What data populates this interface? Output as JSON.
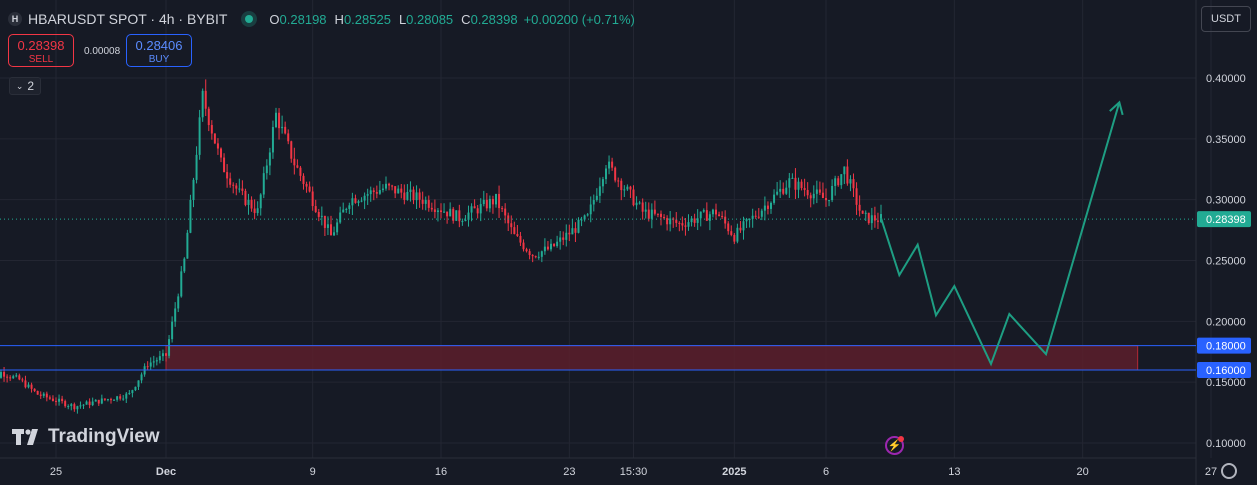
{
  "header": {
    "symbol": "HBARUSDT SPOT · 4h · BYBIT",
    "open_label": "O",
    "open": "0.28198",
    "high_label": "H",
    "high": "0.28525",
    "low_label": "L",
    "low": "0.28085",
    "close_label": "C",
    "close": "0.28398",
    "change": "+0.00200 (+0.71%)",
    "logo_letter": "H"
  },
  "trade": {
    "sell_price": "0.28398",
    "sell_label": "SELL",
    "buy_price": "0.28406",
    "buy_label": "BUY",
    "spread": "0.00008"
  },
  "indicators_toggle": {
    "icon": "chevron-down-icon",
    "count": "2"
  },
  "currency": "USDT",
  "branding": "TradingView",
  "colors": {
    "up": "#22ab94",
    "down": "#f23645",
    "zone": "#5c1f2c",
    "level_line": "#2962ff",
    "projection": "#1e9e83",
    "background": "#161a25"
  },
  "chart_data": {
    "type": "candlestick",
    "timeframe": "4h",
    "ylim": [
      0.095,
      0.425
    ],
    "yticks": [
      "0.40000",
      "0.35000",
      "0.30000",
      "0.25000",
      "0.20000",
      "0.15000",
      "0.10000"
    ],
    "xticks": [
      "25",
      "Dec",
      "9",
      "16",
      "23",
      "15:30",
      "2025",
      "6",
      "13",
      "20",
      "27"
    ],
    "last_price": "0.28398",
    "levels": [
      {
        "label": "0.18000",
        "value": 0.18
      },
      {
        "label": "0.16000",
        "value": 0.16
      }
    ],
    "demand_zone": {
      "from": 0.16,
      "to": 0.18,
      "x_start": "Dec 1",
      "x_end": "Jan 23"
    },
    "projection_path": [
      [
        "Jan 9",
        0.285
      ],
      [
        "Jan 10",
        0.238
      ],
      [
        "Jan 11",
        0.263
      ],
      [
        "Jan 12",
        0.205
      ],
      [
        "Jan 13",
        0.229
      ],
      [
        "Jan 15",
        0.165
      ],
      [
        "Jan 16",
        0.206
      ],
      [
        "Jan 18",
        0.173
      ],
      [
        "Jan 22",
        0.38
      ]
    ],
    "anchors": [
      [
        "Nov 21",
        0.14
      ],
      [
        "Nov 22",
        0.158
      ],
      [
        "Nov 23",
        0.152
      ],
      [
        "Nov 24",
        0.14
      ],
      [
        "Nov 26",
        0.13
      ],
      [
        "Nov 29",
        0.14
      ],
      [
        "Nov 30",
        0.165
      ],
      [
        "Dec 1",
        0.172
      ],
      [
        "Dec 2",
        0.25
      ],
      [
        "Dec 3",
        0.385
      ],
      [
        "Dec 4",
        0.33
      ],
      [
        "Dec 5",
        0.305
      ],
      [
        "Dec 6",
        0.29
      ],
      [
        "Dec 7",
        0.37
      ],
      [
        "Dec 8",
        0.33
      ],
      [
        "Dec 9",
        0.3
      ],
      [
        "Dec 10",
        0.27
      ],
      [
        "Dec 11",
        0.3
      ],
      [
        "Dec 13",
        0.31
      ],
      [
        "Dec 15",
        0.3
      ],
      [
        "Dec 17",
        0.285
      ],
      [
        "Dec 19",
        0.3
      ],
      [
        "Dec 20",
        0.27
      ],
      [
        "Dec 21",
        0.255
      ],
      [
        "Dec 22",
        0.26
      ],
      [
        "Dec 24",
        0.285
      ],
      [
        "Dec 25",
        0.33
      ],
      [
        "Dec 26",
        0.31
      ],
      [
        "Dec 27",
        0.29
      ],
      [
        "Dec 29",
        0.28
      ],
      [
        "Dec 31",
        0.29
      ],
      [
        "Jan 1",
        0.27
      ],
      [
        "Jan 3",
        0.3
      ],
      [
        "Jan 4",
        0.315
      ],
      [
        "Jan 6",
        0.3
      ],
      [
        "Jan 7",
        0.325
      ],
      [
        "Jan 8",
        0.285
      ],
      [
        "Jan 9",
        0.284
      ]
    ]
  }
}
